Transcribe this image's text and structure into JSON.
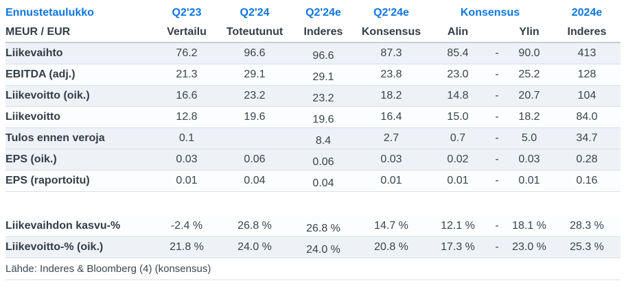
{
  "colors": {
    "accent_blue": "#0d76e0",
    "text_dark": "#333d47",
    "row_shaded_bg": "#eef1f6",
    "row_border": "#dcdfe4"
  },
  "chart_data": {
    "type": "table",
    "title": "Ennustetaulukko",
    "unit_label": "MEUR / EUR",
    "header_groups": {
      "title": "Ennustetaulukko",
      "q223": "Q2'23",
      "q224": "Q2'24",
      "q224e_inderes": "Q2'24e",
      "q224e_konsensus": "Q2'24e",
      "konsensus": "Konsensus",
      "y2024e": "2024e"
    },
    "subheaders": {
      "unit": "MEUR / EUR",
      "vertailu": "Vertailu",
      "toteutunut": "Toteutunut",
      "inderes": "Inderes",
      "konsensus": "Konsensus",
      "alin": "Alin",
      "ylin": "Ylin",
      "inderes2": "Inderes"
    },
    "rows": [
      {
        "label": "Liikevaihto",
        "vertailu": "76.2",
        "toteutunut": "96.6",
        "inderes": "96.6",
        "konsensus": "87.3",
        "alin": "85.4",
        "dash": "-",
        "ylin": "90.0",
        "y2024e": "413",
        "shaded": true
      },
      {
        "label": "EBITDA (adj.)",
        "vertailu": "21.3",
        "toteutunut": "29.1",
        "inderes": "29.1",
        "konsensus": "23.8",
        "alin": "23.0",
        "dash": "-",
        "ylin": "25.2",
        "y2024e": "128",
        "shaded": false
      },
      {
        "label": "Liikevoitto (oik.)",
        "vertailu": "16.6",
        "toteutunut": "23.2",
        "inderes": "23.2",
        "konsensus": "18.2",
        "alin": "14.8",
        "dash": "-",
        "ylin": "20.7",
        "y2024e": "104",
        "shaded": true
      },
      {
        "label": "Liikevoitto",
        "vertailu": "12.8",
        "toteutunut": "19.6",
        "inderes": "19.6",
        "konsensus": "16.4",
        "alin": "15.0",
        "dash": "-",
        "ylin": "18.2",
        "y2024e": "84.0",
        "shaded": false
      },
      {
        "label": "Tulos ennen veroja",
        "vertailu": "0.1",
        "toteutunut": "",
        "inderes": "8.4",
        "konsensus": "2.7",
        "alin": "0.7",
        "dash": "-",
        "ylin": "5.0",
        "y2024e": "34.7",
        "shaded": true
      },
      {
        "label": "EPS (oik.)",
        "vertailu": "0.03",
        "toteutunut": "0.06",
        "inderes": "0.06",
        "konsensus": "0.03",
        "alin": "0.02",
        "dash": "-",
        "ylin": "0.03",
        "y2024e": "0.28",
        "shaded": true
      },
      {
        "label": "EPS (raportoitu)",
        "vertailu": "0.01",
        "toteutunut": "0.04",
        "inderes": "0.04",
        "konsensus": "0.01",
        "alin": "0.01",
        "dash": "-",
        "ylin": "0.01",
        "y2024e": "0.16",
        "shaded": false
      }
    ],
    "pct_rows": [
      {
        "label": "Liikevaihdon kasvu-%",
        "vertailu": "-2.4 %",
        "toteutunut": "26.8 %",
        "inderes": "26.8 %",
        "konsensus": "14.7 %",
        "alin": "12.1 %",
        "dash": "-",
        "ylin": "18.1 %",
        "y2024e": "28.3 %",
        "shaded": false
      },
      {
        "label": "Liikevoitto-% (oik.)",
        "vertailu": "21.8 %",
        "toteutunut": "24.0 %",
        "inderes": "24.0 %",
        "konsensus": "20.8 %",
        "alin": "17.3 %",
        "dash": "-",
        "ylin": "23.0 %",
        "y2024e": "25.3 %",
        "shaded": true
      }
    ],
    "footer": "Lähde: Inderes & Bloomberg (4)  (konsensus)"
  }
}
